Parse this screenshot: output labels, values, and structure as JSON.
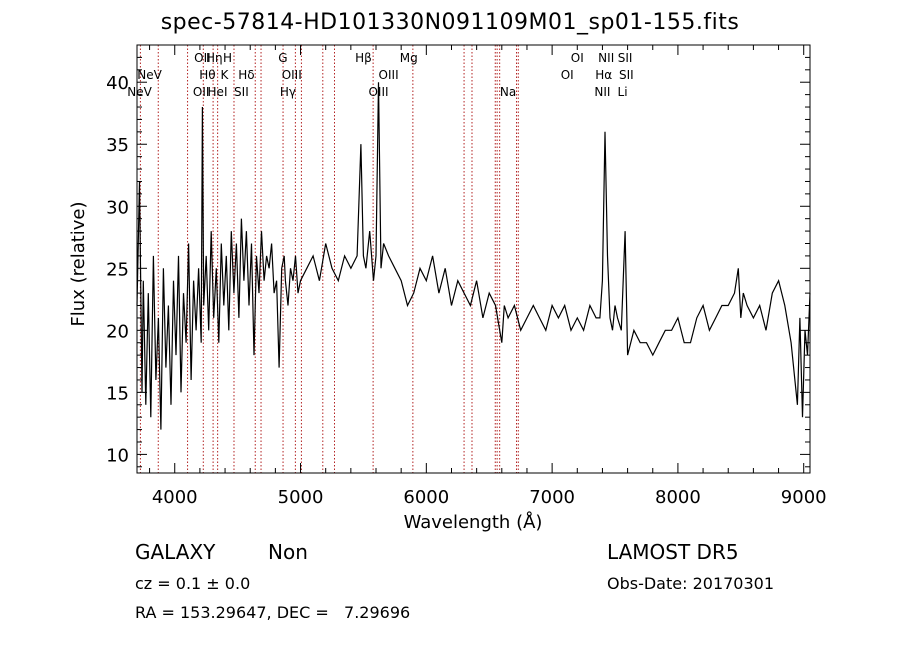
{
  "chart_data": {
    "type": "line",
    "title": "spec-57814-HD101330N091109M01_sp01-155.fits",
    "xlabel": "Wavelength (Å)",
    "ylabel": "Flux (relative)",
    "xlim": [
      3700,
      9050
    ],
    "ylim": [
      8.5,
      43
    ],
    "xticks": [
      4000,
      5000,
      6000,
      7000,
      8000,
      9000
    ],
    "yticks": [
      10,
      15,
      20,
      25,
      30,
      35,
      40
    ],
    "grid": false,
    "line_color": "#000000",
    "marker_color": "#b22222",
    "series": [
      {
        "x": [
          3700,
          3720,
          3740,
          3750,
          3770,
          3790,
          3810,
          3830,
          3850,
          3870,
          3890,
          3910,
          3930,
          3950,
          3970,
          3990,
          4010,
          4030,
          4050,
          4070,
          4090,
          4110,
          4130,
          4150,
          4170,
          4190,
          4210,
          4220,
          4230,
          4250,
          4270,
          4290,
          4310,
          4330,
          4350,
          4370,
          4390,
          4410,
          4430,
          4450,
          4470,
          4490,
          4510,
          4530,
          4550,
          4570,
          4590,
          4610,
          4630,
          4650,
          4670,
          4690,
          4710,
          4730,
          4750,
          4770,
          4790,
          4810,
          4830,
          4850,
          4870,
          4880,
          4900,
          4920,
          4940,
          4960,
          4980,
          5000,
          5050,
          5100,
          5150,
          5200,
          5250,
          5300,
          5350,
          5400,
          5450,
          5480,
          5500,
          5520,
          5550,
          5580,
          5600,
          5620,
          5640,
          5660,
          5700,
          5750,
          5800,
          5850,
          5900,
          5950,
          6000,
          6050,
          6100,
          6150,
          6200,
          6250,
          6300,
          6350,
          6400,
          6450,
          6500,
          6550,
          6600,
          6620,
          6650,
          6700,
          6750,
          6800,
          6850,
          6900,
          6950,
          7000,
          7050,
          7100,
          7150,
          7200,
          7250,
          7300,
          7350,
          7380,
          7400,
          7420,
          7440,
          7460,
          7480,
          7500,
          7520,
          7550,
          7580,
          7600,
          7650,
          7700,
          7750,
          7800,
          7850,
          7900,
          7950,
          8000,
          8050,
          8100,
          8150,
          8200,
          8250,
          8300,
          8350,
          8400,
          8450,
          8480,
          8500,
          8520,
          8550,
          8600,
          8650,
          8700,
          8750,
          8800,
          8850,
          8900,
          8950,
          8970,
          8990,
          9010,
          9030,
          9050
        ],
        "y": [
          22,
          32,
          15,
          24,
          14,
          23,
          13,
          26,
          16,
          21,
          12,
          25,
          17,
          22,
          14,
          24,
          18,
          26,
          15,
          23,
          19,
          27,
          16,
          24,
          20,
          25,
          19,
          38,
          22,
          26,
          20,
          28,
          21,
          25,
          19,
          27,
          22,
          26,
          20,
          28,
          23,
          27,
          21,
          29,
          24,
          28,
          22,
          27,
          18,
          26,
          23,
          28,
          24,
          26,
          25,
          27,
          23,
          24,
          17,
          25,
          26,
          24,
          22,
          25,
          24,
          26,
          23,
          24,
          25,
          26,
          24,
          27,
          25,
          24,
          26,
          25,
          26,
          35,
          26,
          25,
          28,
          24,
          26,
          40,
          25,
          27,
          26,
          25,
          24,
          22,
          23,
          25,
          24,
          26,
          23,
          25,
          22,
          24,
          23,
          22,
          24,
          21,
          23,
          22,
          19,
          22,
          21,
          22,
          20,
          21,
          22,
          21,
          20,
          22,
          21,
          22,
          20,
          21,
          20,
          22,
          21,
          21,
          24,
          36,
          26,
          21,
          20,
          22,
          21,
          20,
          28,
          18,
          20,
          19,
          19,
          18,
          19,
          20,
          20,
          21,
          19,
          19,
          21,
          22,
          20,
          21,
          22,
          22,
          23,
          25,
          21,
          23,
          22,
          21,
          22,
          20,
          23,
          24,
          22,
          19,
          14,
          21,
          13,
          20,
          18,
          23
        ]
      }
    ],
    "line_markers": [
      {
        "x": 3727
      },
      {
        "x": 3869
      },
      {
        "x": 4102
      },
      {
        "x": 4227
      },
      {
        "x": 4305
      },
      {
        "x": 4341
      },
      {
        "x": 4471
      },
      {
        "x": 4640
      },
      {
        "x": 4686
      },
      {
        "x": 4861
      },
      {
        "x": 4959
      },
      {
        "x": 5007
      },
      {
        "x": 5177
      },
      {
        "x": 5270
      },
      {
        "x": 5577
      },
      {
        "x": 5893
      },
      {
        "x": 6300
      },
      {
        "x": 6363
      },
      {
        "x": 6548
      },
      {
        "x": 6563
      },
      {
        "x": 6583
      },
      {
        "x": 6717
      },
      {
        "x": 6731
      }
    ],
    "line_labels": [
      {
        "text": "NeV",
        "x": 3800,
        "row": 1
      },
      {
        "text": "NeV",
        "x": 3720,
        "row": 2
      },
      {
        "text": "OII",
        "x": 4220,
        "row": 0
      },
      {
        "text": "Hη",
        "x": 4315,
        "row": 0
      },
      {
        "text": "H",
        "x": 4420,
        "row": 0
      },
      {
        "text": "Hθ",
        "x": 4260,
        "row": 1
      },
      {
        "text": "K",
        "x": 4395,
        "row": 1
      },
      {
        "text": "Hδ",
        "x": 4570,
        "row": 1
      },
      {
        "text": "OII",
        "x": 4210,
        "row": 2
      },
      {
        "text": "HeI",
        "x": 4340,
        "row": 2
      },
      {
        "text": "SII",
        "x": 4530,
        "row": 2
      },
      {
        "text": "G",
        "x": 4860,
        "row": 0
      },
      {
        "text": "OIII",
        "x": 4930,
        "row": 1
      },
      {
        "text": "Hγ",
        "x": 4900,
        "row": 2
      },
      {
        "text": "Hβ",
        "x": 5500,
        "row": 0
      },
      {
        "text": "Mg",
        "x": 5860,
        "row": 0
      },
      {
        "text": "OIII",
        "x": 5700,
        "row": 1
      },
      {
        "text": "OIII",
        "x": 5620,
        "row": 2
      },
      {
        "text": "Na",
        "x": 6650,
        "row": 2
      },
      {
        "text": "OI",
        "x": 7200,
        "row": 0
      },
      {
        "text": "OI",
        "x": 7120,
        "row": 1
      },
      {
        "text": "NII",
        "x": 7430,
        "row": 0
      },
      {
        "text": "SII",
        "x": 7580,
        "row": 0
      },
      {
        "text": "Hα",
        "x": 7410,
        "row": 1
      },
      {
        "text": "SII",
        "x": 7590,
        "row": 1
      },
      {
        "text": "NII",
        "x": 7400,
        "row": 2
      },
      {
        "text": "Li",
        "x": 7560,
        "row": 2
      }
    ]
  },
  "info": {
    "class": "GALAXY",
    "subclass": "Non",
    "cz": "cz = 0.1 ± 0.0",
    "coords": "RA = 153.29647, DEC =   7.29696",
    "survey": "LAMOST DR5",
    "obs_date": "Obs-Date: 20170301"
  }
}
